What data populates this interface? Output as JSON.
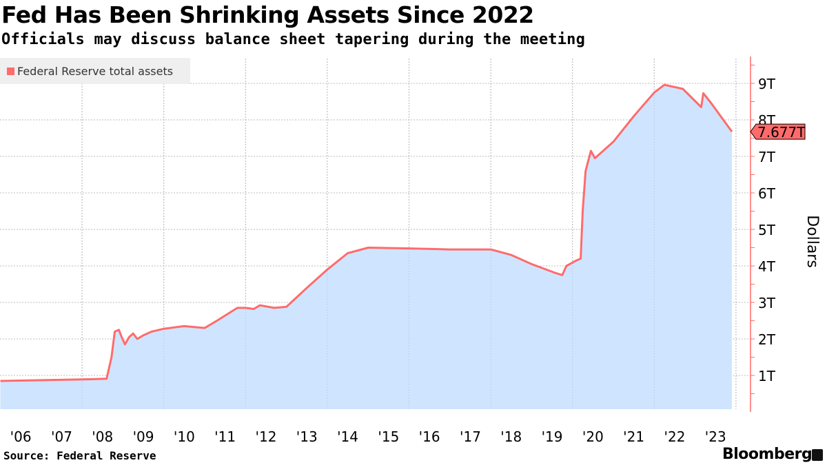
{
  "chart_data": {
    "type": "area",
    "title": "Fed Has Been Shrinking Assets Since 2022",
    "subtitle": "Officials may discuss balance sheet tapering during the meeting",
    "legend": [
      "Federal Reserve total assets"
    ],
    "legend_placement": "top-left",
    "ylabel": "Dollars",
    "xlabel": "",
    "ylim": [
      0,
      10
    ],
    "xlim": [
      2006,
      2024
    ],
    "y_ticks": [
      {
        "v": 1,
        "label": "1T"
      },
      {
        "v": 2,
        "label": "2T"
      },
      {
        "v": 3,
        "label": "3T"
      },
      {
        "v": 4,
        "label": "4T"
      },
      {
        "v": 5,
        "label": "5T"
      },
      {
        "v": 6,
        "label": "6T"
      },
      {
        "v": 7,
        "label": "7T"
      },
      {
        "v": 8,
        "label": "8T"
      },
      {
        "v": 9,
        "label": "9T"
      }
    ],
    "x_ticks": [
      "'06",
      "'07",
      "'08",
      "'09",
      "'10",
      "'11",
      "'12",
      "'13",
      "'14",
      "'15",
      "'16",
      "'17",
      "'18",
      "'19",
      "'20",
      "'21",
      "'22",
      "'23"
    ],
    "last_value_label": "7.677T",
    "grid": true,
    "series": [
      {
        "name": "Federal Reserve total assets",
        "color": "#ff6b6b",
        "fill": "#cce4ff",
        "x": [
          2006.0,
          2007.0,
          2008.0,
          2008.6,
          2008.72,
          2008.8,
          2008.9,
          2008.97,
          2009.05,
          2009.15,
          2009.25,
          2009.35,
          2009.5,
          2009.7,
          2010.0,
          2010.5,
          2011.0,
          2011.3,
          2011.8,
          2012.0,
          2012.2,
          2012.35,
          2012.7,
          2013.0,
          2013.5,
          2014.0,
          2014.5,
          2015.0,
          2016.0,
          2017.0,
          2018.0,
          2018.5,
          2019.0,
          2019.6,
          2019.75,
          2019.85,
          2020.1,
          2020.2,
          2020.25,
          2020.32,
          2020.45,
          2020.55,
          2021.0,
          2021.5,
          2022.0,
          2022.25,
          2022.7,
          2023.15,
          2023.2,
          2023.4,
          2023.9
        ],
        "y": [
          0.85,
          0.87,
          0.89,
          0.91,
          1.5,
          2.2,
          2.25,
          2.05,
          1.85,
          2.05,
          2.15,
          2.0,
          2.1,
          2.2,
          2.28,
          2.35,
          2.3,
          2.5,
          2.85,
          2.85,
          2.82,
          2.92,
          2.85,
          2.88,
          3.4,
          3.9,
          4.35,
          4.5,
          4.48,
          4.45,
          4.45,
          4.3,
          4.05,
          3.8,
          3.75,
          4.0,
          4.15,
          4.2,
          5.5,
          6.6,
          7.15,
          6.95,
          7.4,
          8.1,
          8.75,
          8.96,
          8.85,
          8.35,
          8.73,
          8.45,
          7.677
        ]
      }
    ]
  },
  "footer": {
    "source": "Source: Federal Reserve",
    "brand": "Bloomberg"
  }
}
